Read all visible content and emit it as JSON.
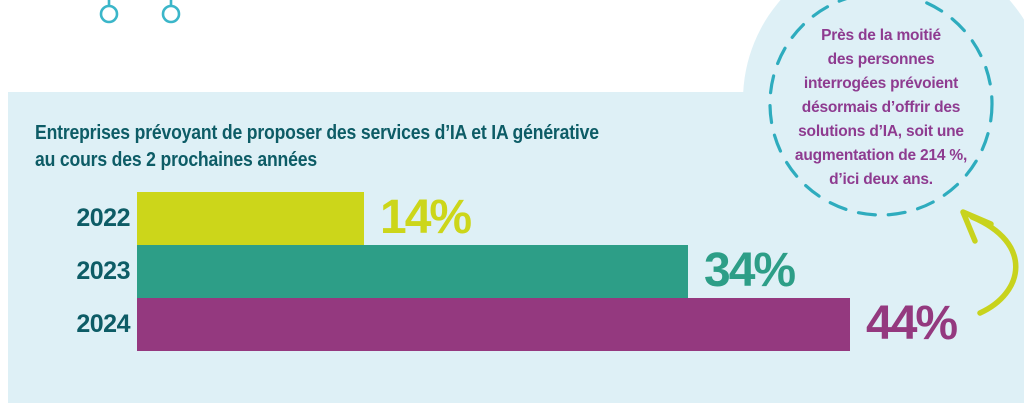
{
  "chart_data": {
    "type": "bar",
    "orientation": "horizontal",
    "title": "Entreprises prévoyant de proposer des services d’IA et IA générative\nau cours des 2 prochaines années",
    "categories": [
      "2022",
      "2023",
      "2024"
    ],
    "values": [
      14,
      34,
      44
    ],
    "value_labels": [
      "14%",
      "34%",
      "44%"
    ],
    "series": [
      {
        "name": "Entreprises prévoyant de proposer des services d’IA et IA générative",
        "values": [
          14,
          34,
          44
        ]
      }
    ],
    "bar_colors": [
      "#ccd61a",
      "#2d9e87",
      "#94397f"
    ],
    "axis_label_color": "#0d5c66",
    "title_color": "#0d5c66",
    "xlim": [
      0,
      48
    ],
    "grid": false,
    "legend": false
  },
  "callout": {
    "text": "Près de la moitié\ndes personnes\ninterrogées prévoient\ndésormais d’offrir des\nsolutions d’IA, soit une\naugmentation de 214 %,\nd’ici deux ans.",
    "text_color": "#8e3b90",
    "dashed_circle_color": "#2eacbe"
  },
  "decor": {
    "arrow_color": "#c8d31d",
    "string_icon_color": "#3bb6c9",
    "panel_color": "#def0f6"
  }
}
